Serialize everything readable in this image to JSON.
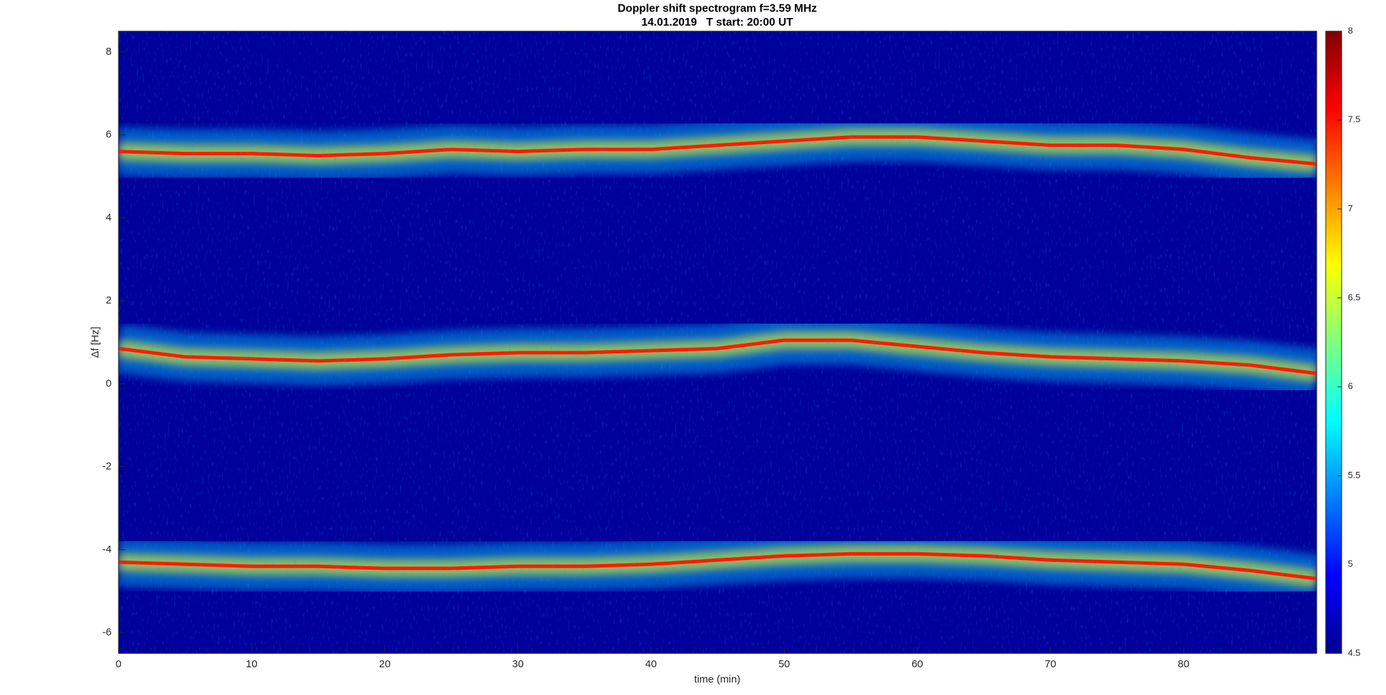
{
  "chart_data": {
    "type": "spectrogram",
    "title": "Doppler shift spectrogram f=3.59 MHz",
    "subtitle": "14.01.2019   T start: 20:00 UT",
    "x_label": "time (min)",
    "y_label": "Δf [Hz]",
    "x": [
      0,
      5,
      10,
      15,
      20,
      25,
      30,
      35,
      40,
      45,
      50,
      55,
      60,
      65,
      70,
      75,
      80,
      85,
      90
    ],
    "series": [
      {
        "color": "#ff1a00",
        "values": [
          5.6,
          5.55,
          5.55,
          5.5,
          5.55,
          5.65,
          5.6,
          5.65,
          5.65,
          5.75,
          5.85,
          5.95,
          5.95,
          5.85,
          5.75,
          5.75,
          5.65,
          5.45,
          5.3
        ]
      },
      {
        "color": "#ff1a00",
        "values": [
          0.85,
          0.65,
          0.6,
          0.55,
          0.6,
          0.7,
          0.75,
          0.75,
          0.8,
          0.85,
          1.05,
          1.05,
          0.9,
          0.75,
          0.65,
          0.6,
          0.55,
          0.45,
          0.25
        ]
      },
      {
        "color": "#ff1a00",
        "values": [
          -4.3,
          -4.35,
          -4.4,
          -4.4,
          -4.45,
          -4.45,
          -4.4,
          -4.4,
          -4.35,
          -4.25,
          -4.15,
          -4.1,
          -4.1,
          -4.15,
          -4.25,
          -4.3,
          -4.35,
          -4.5,
          -4.7
        ]
      }
    ],
    "xlim": [
      0,
      90
    ],
    "xticks": [
      0,
      10,
      20,
      30,
      40,
      50,
      60,
      70,
      80
    ],
    "ylim": [
      -6.5,
      8.5
    ],
    "yticks": [
      -6,
      -4,
      -2,
      0,
      2,
      4,
      6,
      8
    ],
    "clim": [
      4.5,
      8
    ],
    "cticks": [
      4.5,
      5,
      5.5,
      6,
      6.5,
      7,
      7.5,
      8
    ],
    "grid": false
  }
}
